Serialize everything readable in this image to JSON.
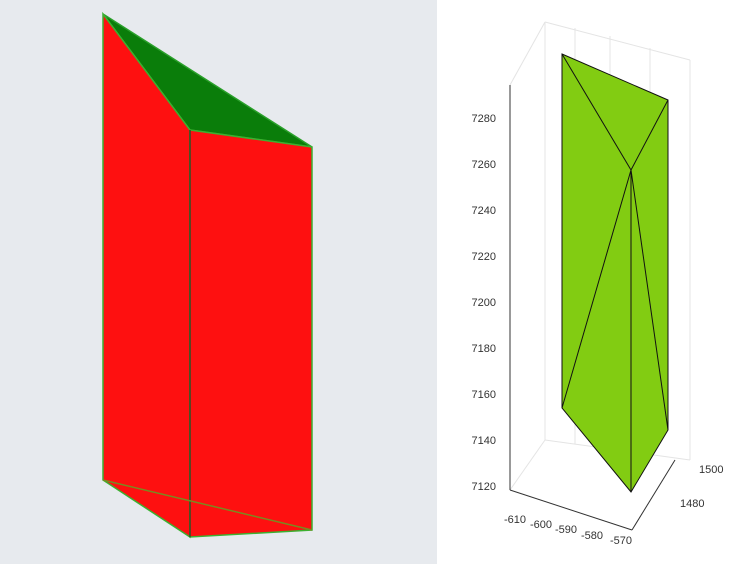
{
  "right_panel": {
    "z_ticks": [
      7120,
      7140,
      7160,
      7180,
      7200,
      7220,
      7240,
      7260,
      7280
    ],
    "x_ticks": [
      -610,
      -600,
      -590,
      -580,
      -570
    ],
    "y_ticks": [
      1480,
      1500
    ]
  }
}
